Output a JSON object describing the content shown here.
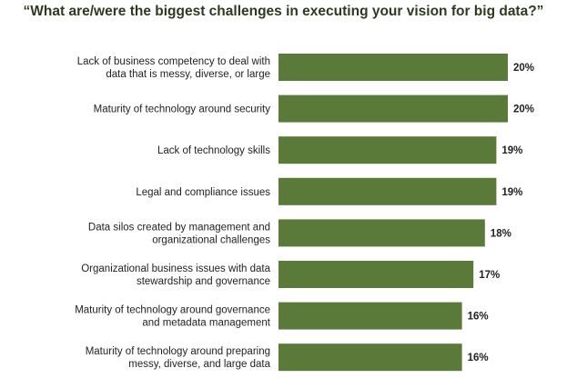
{
  "chart_data": {
    "type": "bar",
    "orientation": "horizontal",
    "title": "“What are/were the biggest challenges in executing your vision for big data?”",
    "categories": [
      [
        "Lack of business competency to deal with",
        "data that is messy, diverse, or large"
      ],
      [
        "Maturity of technology around security"
      ],
      [
        "Lack of technology skills"
      ],
      [
        "Legal and compliance issues"
      ],
      [
        "Data silos created by management and",
        "organizational challenges"
      ],
      [
        "Organizational business issues with data",
        "stewardship and governance"
      ],
      [
        "Maturity of technology around governance",
        "and metadata management"
      ],
      [
        "Maturity of technology around preparing",
        "messy, diverse, and large data"
      ]
    ],
    "values": [
      20,
      20,
      19,
      19,
      18,
      17,
      16,
      16
    ],
    "value_labels": [
      "20%",
      "20%",
      "19%",
      "19%",
      "18%",
      "17%",
      "16%",
      "16%"
    ],
    "xlim": [
      0,
      20
    ],
    "grid": false,
    "bar_color": "#5a7a3a"
  }
}
